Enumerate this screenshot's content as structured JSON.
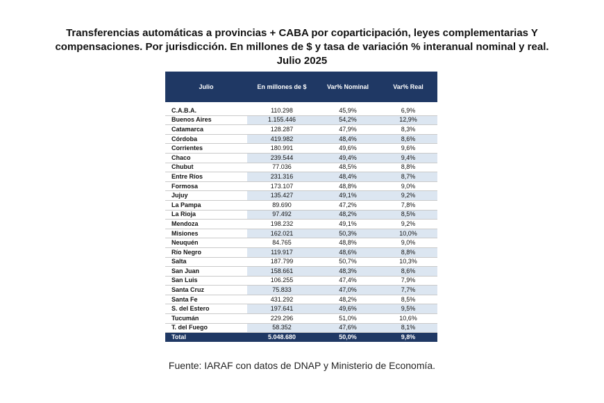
{
  "title": "Transferencias automáticas  a provincias + CABA por coparticipación,  leyes complementarias Y compensaciones.  Por jurisdicción.  En millones de $ y tasa de variación % interanual nominal y real.  Julio 2025",
  "table": {
    "headers": [
      "Julio",
      "En millones de $",
      "Var% Nominal",
      "Var% Real"
    ],
    "rows": [
      {
        "name": "C.A.B.A.",
        "millones": "110.298",
        "nominal": "45,9%",
        "real": "6,9%"
      },
      {
        "name": "Buenos Aires",
        "millones": "1.155.446",
        "nominal": "54,2%",
        "real": "12,9%"
      },
      {
        "name": "Catamarca",
        "millones": "128.287",
        "nominal": "47,9%",
        "real": "8,3%"
      },
      {
        "name": "Córdoba",
        "millones": "419.982",
        "nominal": "48,4%",
        "real": "8,6%"
      },
      {
        "name": "Corrientes",
        "millones": "180.991",
        "nominal": "49,6%",
        "real": "9,6%"
      },
      {
        "name": "Chaco",
        "millones": "239.544",
        "nominal": "49,4%",
        "real": "9,4%"
      },
      {
        "name": "Chubut",
        "millones": "77.036",
        "nominal": "48,5%",
        "real": "8,8%"
      },
      {
        "name": "Entre Ríos",
        "millones": "231.316",
        "nominal": "48,4%",
        "real": "8,7%"
      },
      {
        "name": "Formosa",
        "millones": "173.107",
        "nominal": "48,8%",
        "real": "9,0%"
      },
      {
        "name": "Jujuy",
        "millones": "135.427",
        "nominal": "49,1%",
        "real": "9,2%"
      },
      {
        "name": "La Pampa",
        "millones": "89.690",
        "nominal": "47,2%",
        "real": "7,8%"
      },
      {
        "name": "La Rioja",
        "millones": "97.492",
        "nominal": "48,2%",
        "real": "8,5%"
      },
      {
        "name": "Mendoza",
        "millones": "198.232",
        "nominal": "49,1%",
        "real": "9,2%"
      },
      {
        "name": "Misiones",
        "millones": "162.021",
        "nominal": "50,3%",
        "real": "10,0%"
      },
      {
        "name": "Neuquén",
        "millones": "84.765",
        "nominal": "48,8%",
        "real": "9,0%"
      },
      {
        "name": "Río Negro",
        "millones": "119.917",
        "nominal": "48,6%",
        "real": "8,8%"
      },
      {
        "name": "Salta",
        "millones": "187.799",
        "nominal": "50,7%",
        "real": "10,3%"
      },
      {
        "name": "San Juan",
        "millones": "158.661",
        "nominal": "48,3%",
        "real": "8,6%"
      },
      {
        "name": "San Luis",
        "millones": "106.255",
        "nominal": "47,4%",
        "real": "7,9%"
      },
      {
        "name": "Santa Cruz",
        "millones": "75.833",
        "nominal": "47,0%",
        "real": "7,7%"
      },
      {
        "name": "Santa Fe",
        "millones": "431.292",
        "nominal": "48,2%",
        "real": "8,5%"
      },
      {
        "name": "S. del Estero",
        "millones": "197.641",
        "nominal": "49,6%",
        "real": "9,5%"
      },
      {
        "name": "Tucumán",
        "millones": "229.296",
        "nominal": "51,0%",
        "real": "10,6%"
      },
      {
        "name": "T. del Fuego",
        "millones": "58.352",
        "nominal": "47,6%",
        "real": "8,1%"
      }
    ],
    "total": {
      "name": "Total",
      "millones": "5.048.680",
      "nominal": "50,0%",
      "real": "9,8%"
    }
  },
  "source": "Fuente: IARAF con datos de DNAP y Ministerio de Economía.",
  "colors": {
    "header_bg": "#1f3864",
    "header_text": "#ffffff",
    "stripe": "#dce6f1"
  }
}
